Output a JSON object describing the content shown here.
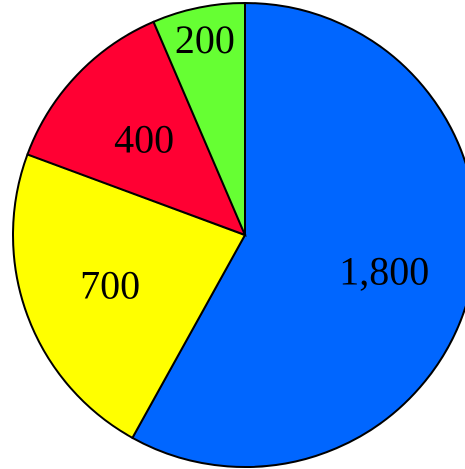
{
  "chart_data": {
    "type": "pie",
    "categories": [
      "1,800",
      "700",
      "400",
      "200"
    ],
    "values": [
      1800,
      700,
      400,
      200
    ],
    "labels": [
      "1,800",
      "700",
      "400",
      "200"
    ],
    "colors": [
      "#0066ff",
      "#ffff00",
      "#ff0033",
      "#66ff33"
    ],
    "start_angle_deg": 0,
    "direction": "clockwise",
    "legend": "none",
    "title": ""
  }
}
